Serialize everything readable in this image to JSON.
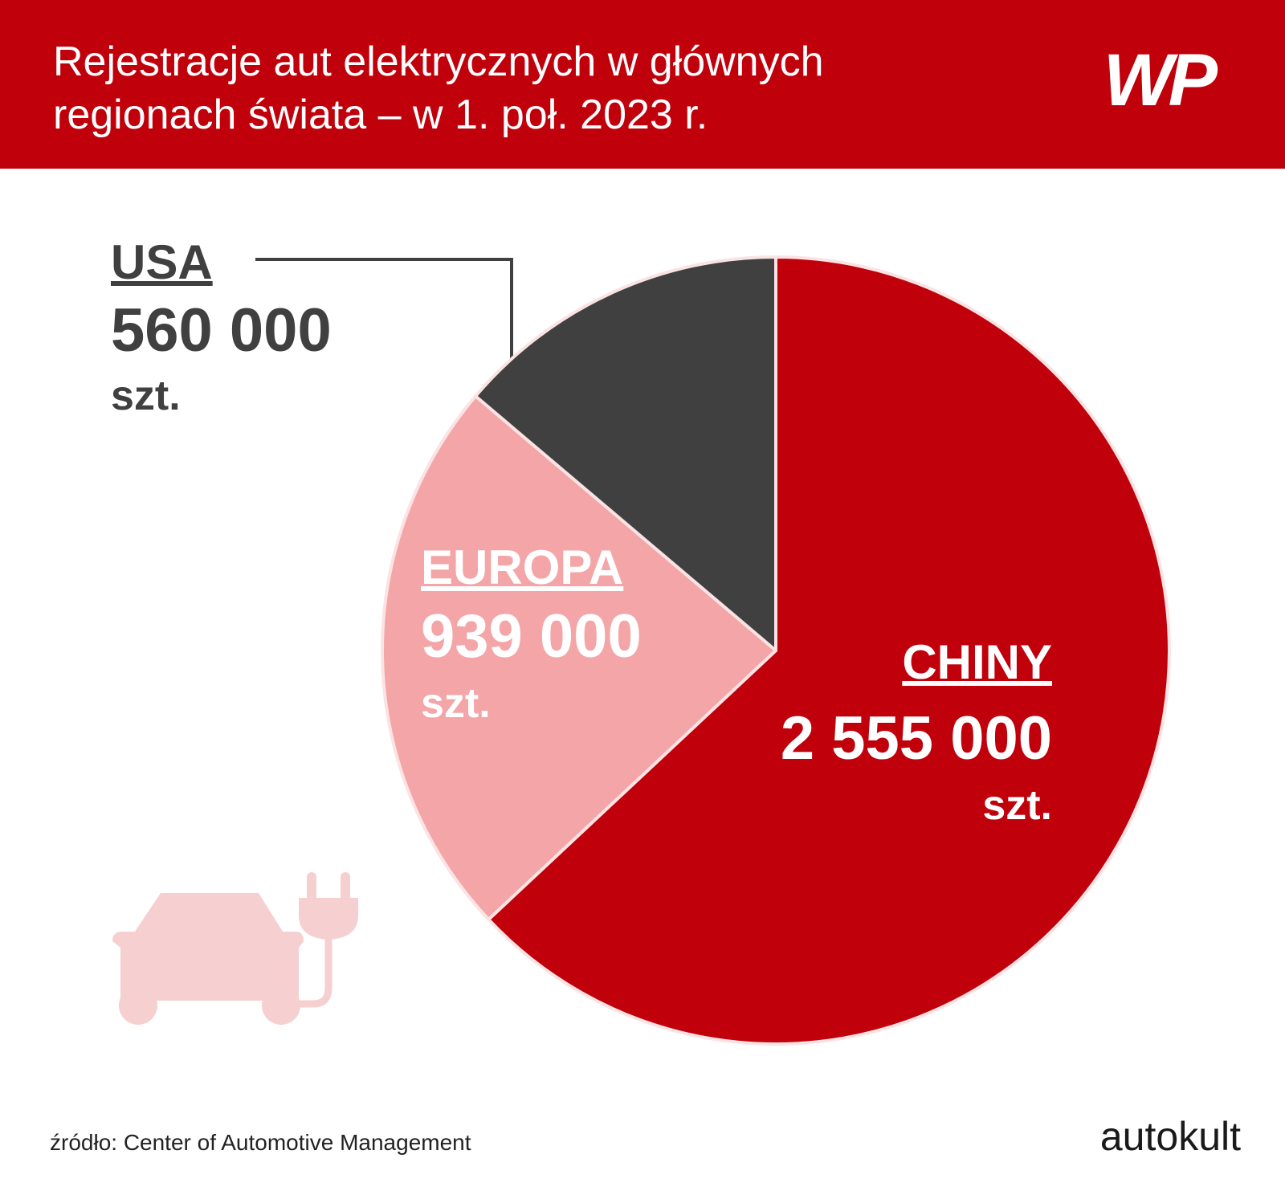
{
  "chart_data": {
    "type": "pie",
    "title": "Rejestracje aut elektrycznych w głównych\nregionach świata – w 1. poł. 2023 r.",
    "categories": [
      "CHINY",
      "EUROPA",
      "USA"
    ],
    "values": [
      2555000,
      939000,
      560000
    ],
    "value_labels": [
      "2 555 000",
      "939 000",
      "560 000"
    ],
    "colors": [
      "#c0000b",
      "#f4a5a7",
      "#404040"
    ],
    "unit": "szt.",
    "source": "źródło: Center of Automotive Management",
    "brand": "autokult",
    "logo": "WP"
  }
}
